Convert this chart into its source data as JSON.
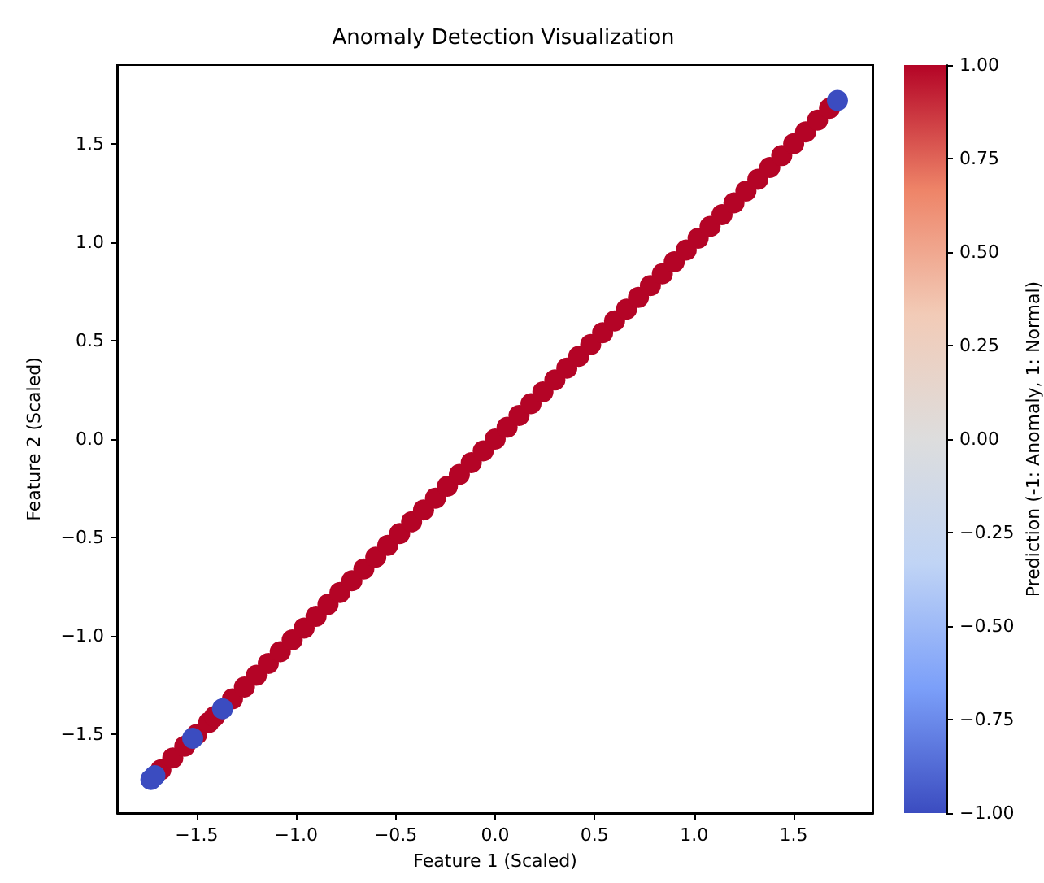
{
  "chart_data": {
    "type": "scatter",
    "title": "Anomaly Detection Visualization",
    "xlabel": "Feature 1 (Scaled)",
    "ylabel": "Feature 2 (Scaled)",
    "clabel": "Prediction (-1: Anomaly, 1: Normal)",
    "x": [
      -1.68,
      -1.62,
      -1.56,
      -1.5,
      -1.44,
      -1.41,
      -1.32,
      -1.26,
      -1.2,
      -1.14,
      -1.08,
      -1.02,
      -0.96,
      -0.9,
      -0.84,
      -0.78,
      -0.72,
      -0.66,
      -0.6,
      -0.54,
      -0.48,
      -0.42,
      -0.36,
      -0.3,
      -0.24,
      -0.18,
      -0.12,
      -0.06,
      0,
      0.06,
      0.12,
      0.18,
      0.24,
      0.3,
      0.36,
      0.42,
      0.48,
      0.54,
      0.6,
      0.66,
      0.72,
      0.78,
      0.84,
      0.9,
      0.96,
      1.02,
      1.08,
      1.14,
      1.2,
      1.26,
      1.32,
      1.38,
      1.44,
      1.5,
      1.56,
      1.62,
      1.68,
      -1.73,
      -1.71,
      -1.52,
      -1.37,
      1.72
    ],
    "values": [
      -1.68,
      -1.62,
      -1.56,
      -1.5,
      -1.44,
      -1.41,
      -1.32,
      -1.26,
      -1.2,
      -1.14,
      -1.08,
      -1.02,
      -0.96,
      -0.9,
      -0.84,
      -0.78,
      -0.72,
      -0.66,
      -0.6,
      -0.54,
      -0.48,
      -0.42,
      -0.36,
      -0.3,
      -0.24,
      -0.18,
      -0.12,
      -0.06,
      0,
      0.06,
      0.12,
      0.18,
      0.24,
      0.3,
      0.36,
      0.42,
      0.48,
      0.54,
      0.6,
      0.66,
      0.72,
      0.78,
      0.84,
      0.9,
      0.96,
      1.02,
      1.08,
      1.14,
      1.2,
      1.26,
      1.32,
      1.38,
      1.44,
      1.5,
      1.56,
      1.62,
      1.68,
      -1.73,
      -1.71,
      -1.52,
      -1.37,
      1.72
    ],
    "cvalues": [
      1,
      1,
      1,
      1,
      1,
      1,
      1,
      1,
      1,
      1,
      1,
      1,
      1,
      1,
      1,
      1,
      1,
      1,
      1,
      1,
      1,
      1,
      1,
      1,
      1,
      1,
      1,
      1,
      1,
      1,
      1,
      1,
      1,
      1,
      1,
      1,
      1,
      1,
      1,
      1,
      1,
      1,
      1,
      1,
      1,
      1,
      1,
      1,
      1,
      1,
      1,
      1,
      1,
      1,
      1,
      1,
      1,
      -1,
      -1,
      -1,
      -1,
      -1
    ],
    "xlim": [
      -1.9,
      1.9
    ],
    "ylim": [
      -1.9,
      1.9
    ],
    "xticks": [
      {
        "value": -1.5,
        "label": "−1.5"
      },
      {
        "value": -1,
        "label": "−1.0"
      },
      {
        "value": -0.5,
        "label": "−0.5"
      },
      {
        "value": 0,
        "label": "0.0"
      },
      {
        "value": 0.5,
        "label": "0.5"
      },
      {
        "value": 1,
        "label": "1.0"
      },
      {
        "value": 1.5,
        "label": "1.5"
      }
    ],
    "yticks": [
      {
        "value": -1.5,
        "label": "−1.5"
      },
      {
        "value": -1,
        "label": "−1.0"
      },
      {
        "value": -0.5,
        "label": "−0.5"
      },
      {
        "value": 0,
        "label": "0.0"
      },
      {
        "value": 0.5,
        "label": "0.5"
      },
      {
        "value": 1,
        "label": "1.0"
      },
      {
        "value": 1.5,
        "label": "1.5"
      }
    ],
    "clim": [
      -1,
      1
    ],
    "cticks": [
      {
        "value": -1,
        "label": "−1.00"
      },
      {
        "value": -0.75,
        "label": "−0.75"
      },
      {
        "value": -0.5,
        "label": "−0.50"
      },
      {
        "value": -0.25,
        "label": "−0.25"
      },
      {
        "value": 0,
        "label": "0.00"
      },
      {
        "value": 0.25,
        "label": "0.25"
      },
      {
        "value": 0.5,
        "label": "0.50"
      },
      {
        "value": 0.75,
        "label": "0.75"
      },
      {
        "value": 1,
        "label": "1.00"
      }
    ],
    "marker": "circle"
  }
}
